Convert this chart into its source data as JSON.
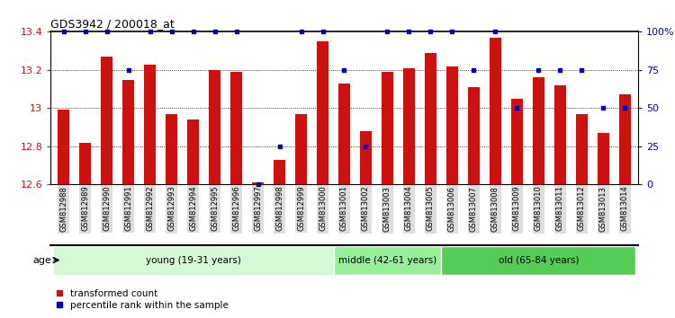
{
  "title": "GDS3942 / 200018_at",
  "samples": [
    "GSM812988",
    "GSM812989",
    "GSM812990",
    "GSM812991",
    "GSM812992",
    "GSM812993",
    "GSM812994",
    "GSM812995",
    "GSM812996",
    "GSM812997",
    "GSM812998",
    "GSM812999",
    "GSM813000",
    "GSM813001",
    "GSM813002",
    "GSM813003",
    "GSM813004",
    "GSM813005",
    "GSM813006",
    "GSM813007",
    "GSM813008",
    "GSM813009",
    "GSM813010",
    "GSM813011",
    "GSM813012",
    "GSM813013",
    "GSM813014"
  ],
  "red_values": [
    12.99,
    12.82,
    13.27,
    13.15,
    13.23,
    12.97,
    12.94,
    13.2,
    13.19,
    12.61,
    12.73,
    12.97,
    13.35,
    13.13,
    12.88,
    13.19,
    13.21,
    13.29,
    13.22,
    13.11,
    13.37,
    13.05,
    13.16,
    13.12,
    12.97,
    12.87,
    13.07
  ],
  "blue_values": [
    100,
    100,
    100,
    75,
    100,
    100,
    100,
    100,
    100,
    0,
    25,
    100,
    100,
    75,
    25,
    100,
    100,
    100,
    100,
    75,
    100,
    50,
    75,
    75,
    75,
    50,
    50
  ],
  "groups": [
    {
      "label": "young (19-31 years)",
      "start": 0,
      "end": 13,
      "color": "#d4f7d4"
    },
    {
      "label": "middle (42-61 years)",
      "start": 13,
      "end": 18,
      "color": "#99ee99"
    },
    {
      "label": "old (65-84 years)",
      "start": 18,
      "end": 27,
      "color": "#55cc55"
    }
  ],
  "ylim_left": [
    12.6,
    13.4
  ],
  "ylim_right": [
    0,
    100
  ],
  "yticks_left": [
    12.6,
    12.8,
    13.0,
    13.2,
    13.4
  ],
  "yticks_right": [
    0,
    25,
    50,
    75,
    100
  ],
  "ytick_labels_right": [
    "0",
    "25",
    "50",
    "75",
    "100%"
  ],
  "bar_color": "#cc1111",
  "dot_color": "#0000bb",
  "bg_color": "#ffffff",
  "grid_color": "#000000",
  "age_label": "age",
  "legend_red": "transformed count",
  "legend_blue": "percentile rank within the sample"
}
